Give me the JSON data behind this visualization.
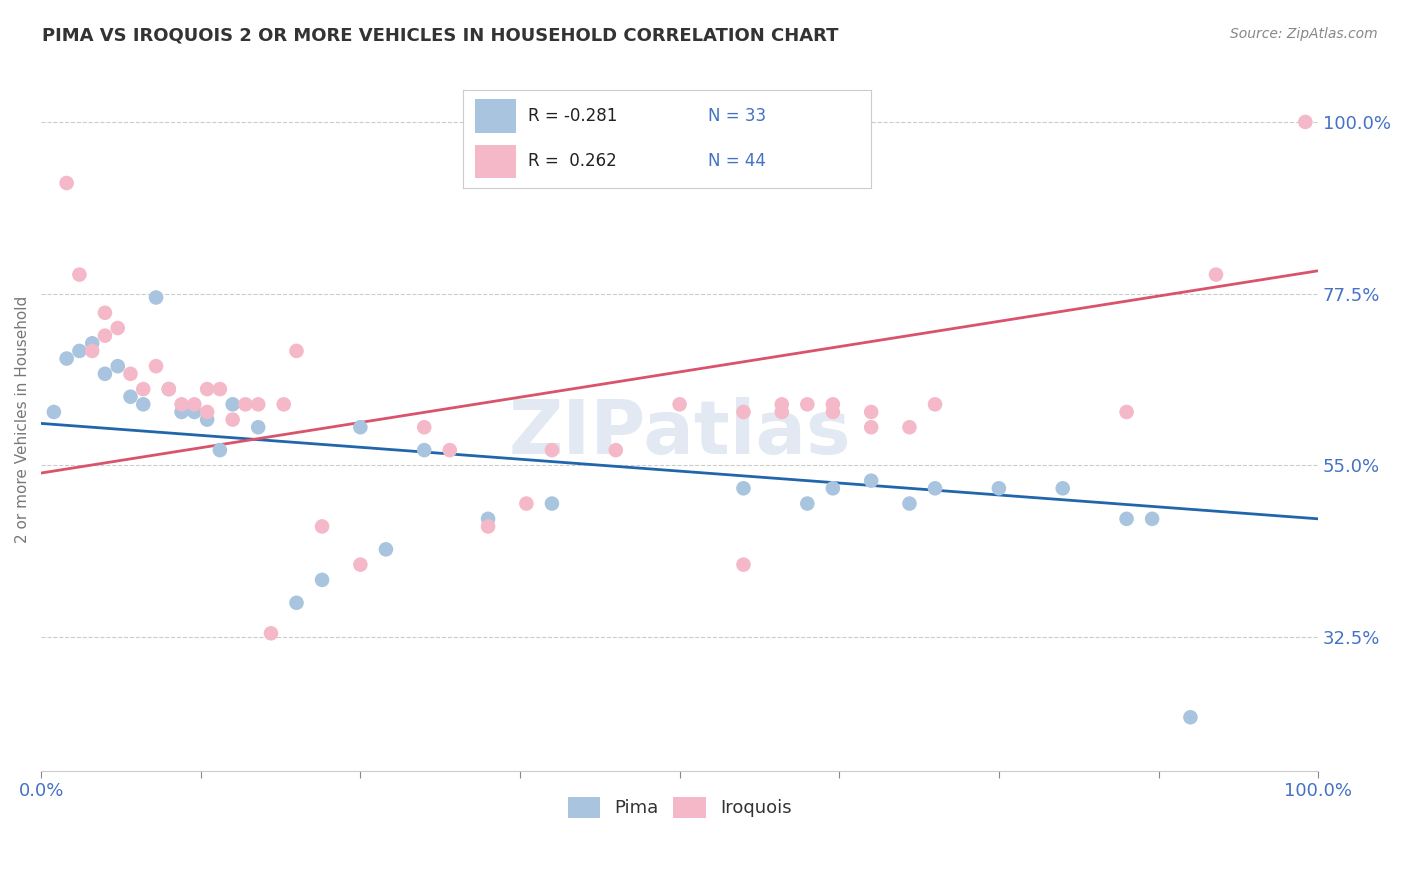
{
  "title": "PIMA VS IROQUOIS 2 OR MORE VEHICLES IN HOUSEHOLD CORRELATION CHART",
  "source": "Source: ZipAtlas.com",
  "ylabel": "2 or more Vehicles in Household",
  "xlim": [
    0.0,
    100.0
  ],
  "ylim": [
    15.0,
    107.0
  ],
  "yticks": [
    32.5,
    55.0,
    77.5,
    100.0
  ],
  "pima_color": "#a8c4de",
  "iroquois_color": "#f4b8c8",
  "pima_line_color": "#2166ac",
  "iroquois_line_color": "#d9536a",
  "pima_line_start_y": 60.5,
  "pima_line_end_y": 48.0,
  "iroquois_line_start_y": 54.0,
  "iroquois_line_end_y": 80.5,
  "watermark": "ZIPatlas",
  "axis_color": "#4472c4",
  "title_color": "#333333",
  "background_color": "#ffffff",
  "grid_color": "#cccccc",
  "pima_x": [
    1,
    2,
    3,
    4,
    5,
    6,
    7,
    8,
    9,
    10,
    11,
    12,
    13,
    14,
    15,
    17,
    20,
    22,
    25,
    27,
    30,
    35,
    40,
    55,
    60,
    62,
    65,
    68,
    70,
    75,
    80,
    85,
    87,
    90
  ],
  "pima_y": [
    62,
    69,
    70,
    71,
    67,
    68,
    64,
    63,
    77,
    65,
    62,
    62,
    61,
    57,
    63,
    60,
    37,
    40,
    60,
    44,
    57,
    48,
    50,
    52,
    50,
    52,
    53,
    50,
    52,
    52,
    52,
    48,
    48,
    22
  ],
  "iroquois_x": [
    2,
    3,
    4,
    5,
    5,
    6,
    7,
    8,
    9,
    10,
    11,
    12,
    13,
    13,
    14,
    15,
    16,
    17,
    18,
    19,
    20,
    22,
    25,
    30,
    32,
    35,
    38,
    40,
    45,
    50,
    55,
    55,
    58,
    58,
    60,
    62,
    62,
    65,
    65,
    68,
    70,
    85,
    92,
    99
  ],
  "iroquois_y": [
    92,
    80,
    70,
    75,
    72,
    73,
    67,
    65,
    68,
    65,
    63,
    63,
    62,
    65,
    65,
    61,
    63,
    63,
    33,
    63,
    70,
    47,
    42,
    60,
    57,
    47,
    50,
    57,
    57,
    63,
    62,
    42,
    62,
    63,
    63,
    63,
    62,
    60,
    62,
    60,
    63,
    62,
    80,
    100
  ]
}
